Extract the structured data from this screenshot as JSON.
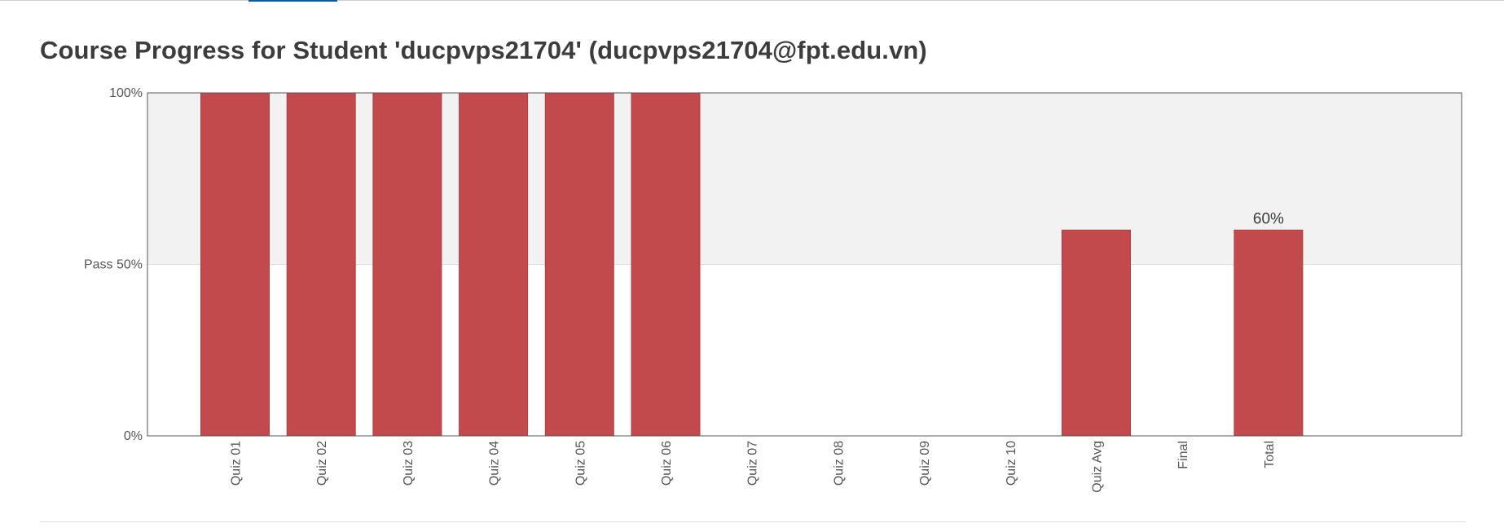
{
  "page": {
    "title": "Course Progress for Student 'ducpvps21704' (ducpvps21704@fpt.edu.vn)"
  },
  "chart_data": {
    "type": "bar",
    "categories": [
      "Quiz 01",
      "Quiz 02",
      "Quiz 03",
      "Quiz 04",
      "Quiz 05",
      "Quiz 06",
      "Quiz 07",
      "Quiz 08",
      "Quiz 09",
      "Quiz 10",
      "Quiz Avg",
      "Final",
      "Total"
    ],
    "values": [
      100,
      100,
      100,
      100,
      100,
      100,
      0,
      0,
      0,
      0,
      60,
      0,
      60
    ],
    "value_labels": [
      "",
      "",
      "",
      "",
      "",
      "",
      "",
      "",
      "",
      "",
      "",
      "",
      "60%"
    ],
    "yticks": [
      {
        "value": 0,
        "label": "0%"
      },
      {
        "value": 50,
        "label": "Pass 50%"
      },
      {
        "value": 100,
        "label": "100%"
      }
    ],
    "ylim": [
      0,
      100
    ],
    "pass_threshold": 50,
    "title": "",
    "xlabel": "",
    "ylabel": "",
    "grid": false,
    "colors": {
      "bar": "#c24a4c",
      "bar_stroke": "#b23d3f",
      "pass_band": "#f2f2f2",
      "axis": "#555555",
      "tick_text": "#555555"
    }
  }
}
